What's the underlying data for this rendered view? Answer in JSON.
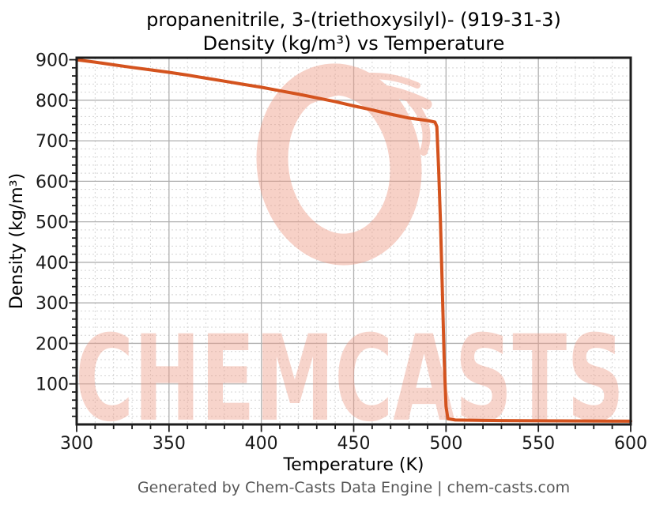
{
  "header": {
    "title": "propanenitrile, 3-(triethoxysilyl)- (919-31-3)",
    "subtitle": "Density (kg/m³) vs Temperature"
  },
  "footer": {
    "text": "Generated by Chem-Casts Data Engine | chem-casts.com"
  },
  "watermark": {
    "text": "CHEMCASTS",
    "logo": "brush-circle-logo",
    "color": "#ee9a85",
    "text_opacity": 0.42,
    "logo_opacity": 0.45
  },
  "chart_data": {
    "type": "line",
    "title": "propanenitrile, 3-(triethoxysilyl)- (919-31-3) Density (kg/m³) vs Temperature",
    "xlabel": "Temperature (K)",
    "ylabel": "Density (kg/m³)",
    "xlim": [
      300,
      600
    ],
    "ylim": [
      0,
      905
    ],
    "x_major_ticks": [
      300,
      350,
      400,
      450,
      500,
      550,
      600
    ],
    "x_minor_step": 10,
    "y_major_ticks": [
      100,
      200,
      300,
      400,
      500,
      600,
      700,
      800,
      900
    ],
    "y_minor_step": 20,
    "grid": true,
    "legend": "none",
    "line_color": "#d4531e",
    "line_width": 4,
    "major_grid_color": "#b0b0b0",
    "minor_grid_color": "#d4d4d4",
    "spine_color": "#1c1c1c",
    "series": [
      {
        "name": "density",
        "points": [
          [
            300,
            900
          ],
          [
            310,
            894
          ],
          [
            320,
            887.5
          ],
          [
            330,
            881
          ],
          [
            340,
            875
          ],
          [
            350,
            869
          ],
          [
            360,
            862
          ],
          [
            370,
            854.5
          ],
          [
            380,
            847
          ],
          [
            390,
            839.5
          ],
          [
            400,
            832
          ],
          [
            410,
            823.5
          ],
          [
            420,
            815
          ],
          [
            430,
            806
          ],
          [
            440,
            796.5
          ],
          [
            450,
            786
          ],
          [
            460,
            776
          ],
          [
            470,
            765.5
          ],
          [
            480,
            756
          ],
          [
            490,
            750
          ],
          [
            494,
            746
          ],
          [
            495,
            735
          ],
          [
            496,
            630
          ],
          [
            497,
            500
          ],
          [
            498,
            330
          ],
          [
            499,
            160
          ],
          [
            500,
            45
          ],
          [
            501,
            14
          ],
          [
            505,
            11
          ],
          [
            520,
            10
          ],
          [
            550,
            9
          ],
          [
            600,
            8
          ]
        ]
      }
    ]
  }
}
